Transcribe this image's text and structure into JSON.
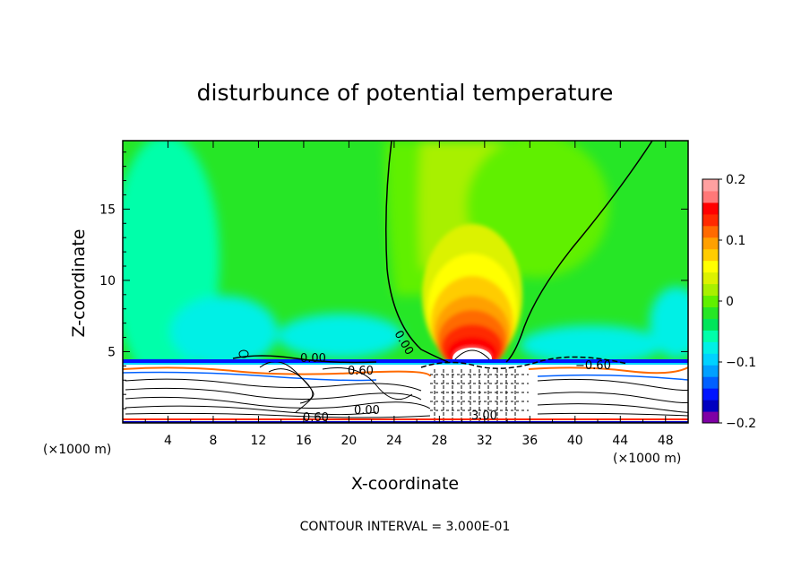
{
  "chart_data": {
    "type": "heatmap",
    "title": "disturbunce of potential temperature",
    "xlabel": "X-coordinate",
    "ylabel": "Z-coordinate",
    "x_unit_label": "(×1000 m)",
    "x_unit_label_right": "(×1000 m)",
    "xlim": [
      0,
      50
    ],
    "ylim": [
      0,
      19.8
    ],
    "x_ticks": [
      4,
      8,
      12,
      16,
      20,
      24,
      28,
      32,
      36,
      40,
      44,
      48
    ],
    "y_ticks": [
      5,
      10,
      15
    ],
    "colorbar": {
      "range": [
        -0.2,
        0.2
      ],
      "tick_values": [
        0.2,
        0.1,
        0,
        -0.1,
        -0.2
      ],
      "tick_labels": [
        "0.2",
        "0.1",
        "0",
        "−0.1",
        "−0.2"
      ],
      "colors": [
        "#7f00a5",
        "#0000c0",
        "#0014ff",
        "#0060ff",
        "#00a0ff",
        "#00d2ff",
        "#00f0e6",
        "#00ffaa",
        "#00e55a",
        "#26e626",
        "#60f000",
        "#a8f000",
        "#dcf200",
        "#ffff00",
        "#ffcc00",
        "#ffa000",
        "#ff6a00",
        "#ff2a00",
        "#ff0000",
        "#ff7878",
        "#ffa0a0"
      ]
    },
    "contour_labels": [
      "0.00",
      "0.00",
      "0.60",
      "−0.60",
      "3.00",
      "0.60",
      "0.00"
    ],
    "annotation": "CONTOUR INTERVAL = 3.000E-01",
    "features": {
      "warm_anomaly_center": [
        31,
        6.5
      ],
      "warm_anomaly_max": 0.2,
      "surface_layer_top": 4.5
    }
  }
}
